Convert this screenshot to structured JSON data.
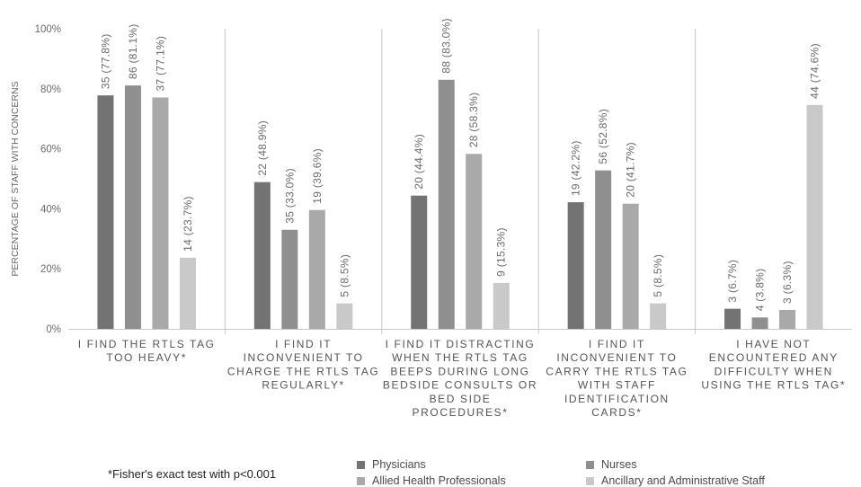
{
  "chart_data": {
    "type": "bar",
    "ylabel": "PERCENTAGE OF STAFF WITH CONCERNS",
    "ylim": [
      0,
      100
    ],
    "yticks": [
      "0%",
      "20%",
      "40%",
      "60%",
      "80%",
      "100%"
    ],
    "categories": [
      [
        "I FIND THE RTLS TAG",
        "TOO HEAVY*"
      ],
      [
        "I FIND IT",
        "INCONVENIENT TO",
        "CHARGE THE RTLS TAG",
        "REGULARLY*"
      ],
      [
        "I FIND IT DISTRACTING",
        "WHEN THE RTLS TAG",
        "BEEPS DURING LONG",
        "BEDSIDE CONSULTS OR",
        "BED SIDE",
        "PROCEDURES*"
      ],
      [
        "I FIND IT",
        "INCONVENIENT TO",
        "CARRY THE RTLS TAG",
        "WITH STAFF",
        "IDENTIFICATION",
        "CARDS*"
      ],
      [
        "I HAVE NOT",
        "ENCOUNTERED ANY",
        "DIFFICULTY WHEN",
        "USING THE RTLS TAG*"
      ]
    ],
    "series": [
      {
        "name": "Physicians",
        "color": "#737373",
        "values": [
          77.8,
          48.9,
          44.4,
          42.2,
          6.7
        ],
        "labels": [
          "35 (77.8%)",
          "22 (48.9%)",
          "20 (44.4%)",
          "19 (42.2%)",
          "3 (6.7%)"
        ]
      },
      {
        "name": "Nurses",
        "color": "#8f8f8f",
        "values": [
          81.1,
          33.0,
          83.0,
          52.8,
          3.8
        ],
        "labels": [
          "86 (81.1%)",
          "35 (33.0%)",
          "88 (83.0%)",
          "56 (52.8%)",
          "4 (3.8%)"
        ]
      },
      {
        "name": "Allied Health Professionals",
        "color": "#a9a9a9",
        "values": [
          77.1,
          39.6,
          58.3,
          41.7,
          6.3
        ],
        "labels": [
          "37 (77.1%)",
          "19 (39.6%)",
          "28 (58.3%)",
          "20 (41.7%)",
          "3 (6.3%)"
        ]
      },
      {
        "name": "Ancillary and Administrative Staff",
        "color": "#c9c9c9",
        "values": [
          23.7,
          8.5,
          15.3,
          8.5,
          74.6
        ],
        "labels": [
          "14 (23.7%)",
          "5 (8.5%)",
          "9 (15.3%)",
          "5 (8.5%)",
          "44 (74.6%)"
        ]
      }
    ],
    "grid": false,
    "legend": "bottom",
    "footnote": "*Fisher's exact test with p<0.001"
  }
}
